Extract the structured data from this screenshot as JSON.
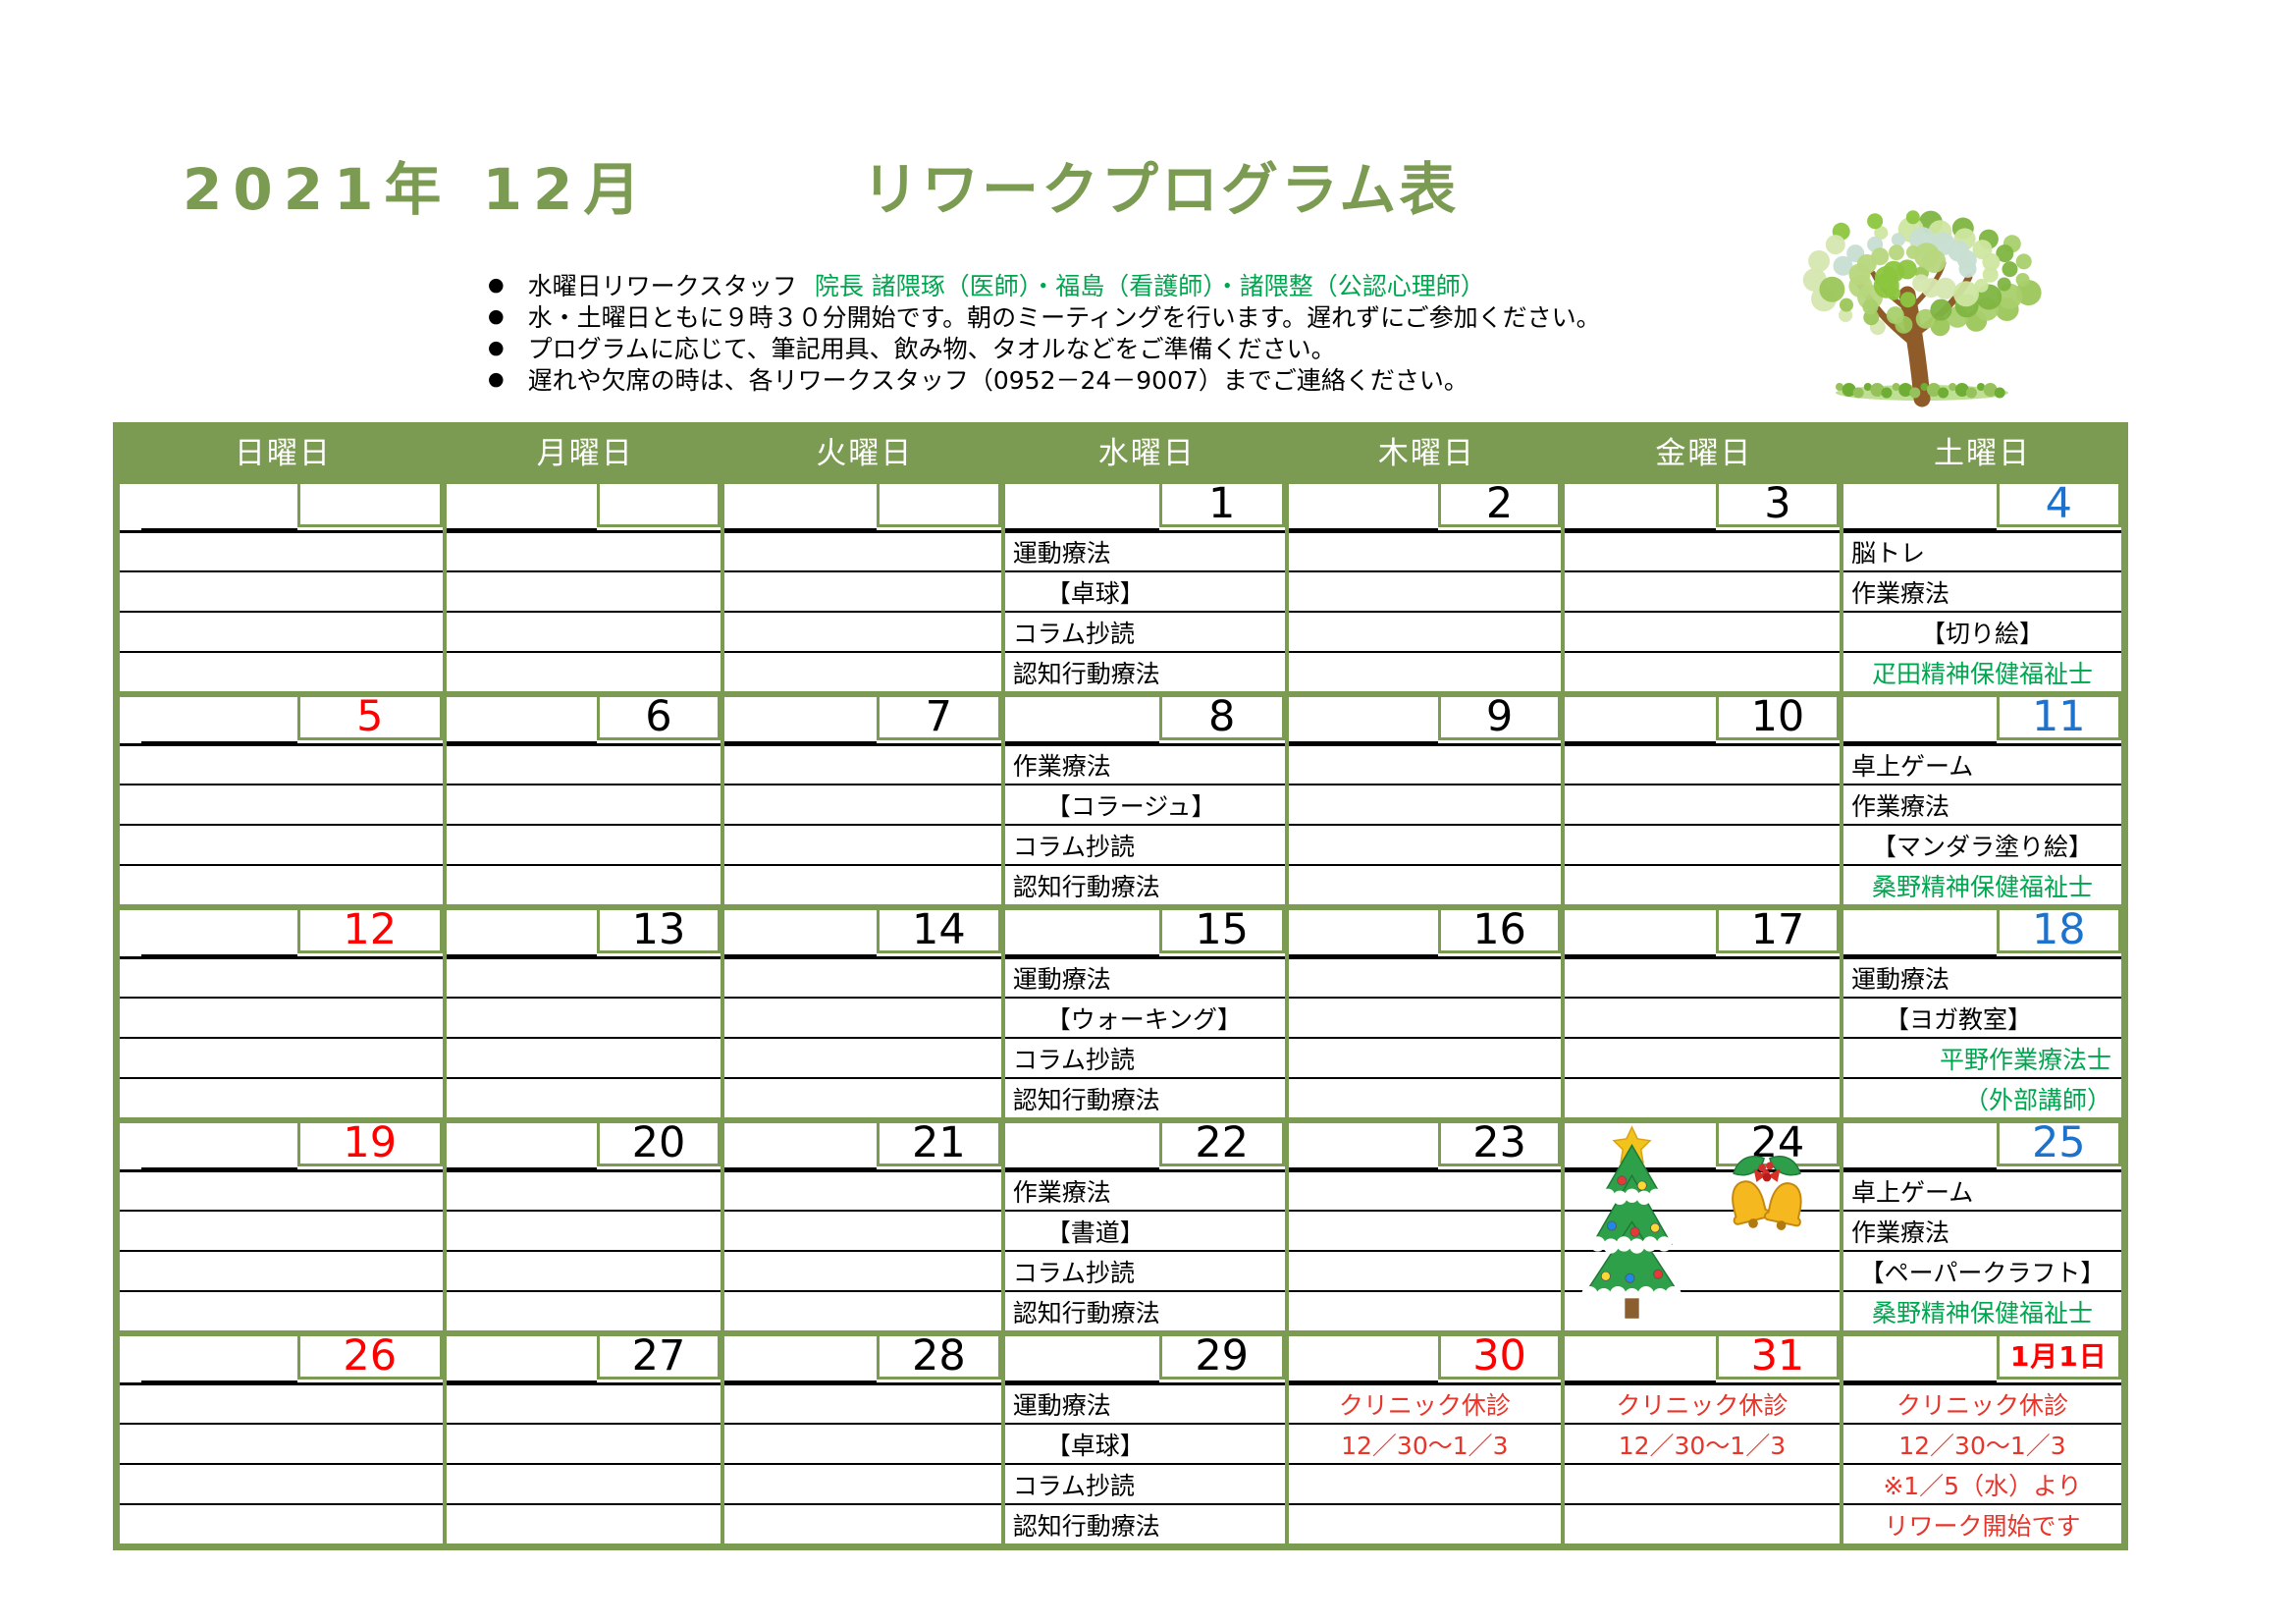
{
  "ui": {
    "bullet": "●"
  },
  "title": {
    "date": "2021年 12月",
    "name": "リワークプログラム表"
  },
  "notes": [
    {
      "text": "水曜日リワークスタッフ",
      "highlight": "院長 諸隈琢（医師）・福島（看護師）・諸隈整（公認心理師）"
    },
    {
      "text": "水・土曜日ともに９時３０分開始です。朝のミーティングを行います。遅れずにご参加ください。",
      "highlight": ""
    },
    {
      "text": "プログラムに応じて、筆記用具、飲み物、タオルなどをご準備ください。",
      "highlight": ""
    },
    {
      "text": "遅れや欠席の時は、各リワークスタッフ（0952－24－9007）までご連絡ください。",
      "highlight": ""
    }
  ],
  "colors": {
    "olive_green": "#7C9B52",
    "staff_green": "#00A64F",
    "closed_red": "#E8352B",
    "sunday_red": "#FF0000",
    "saturday_blue": "#1C72CC"
  },
  "calendar": {
    "weekdays": [
      "日曜日",
      "月曜日",
      "火曜日",
      "水曜日",
      "木曜日",
      "金曜日",
      "土曜日"
    ],
    "weeks": [
      {
        "christmas": false,
        "dates": [
          {
            "label": "",
            "color": "black"
          },
          {
            "label": "",
            "color": "black"
          },
          {
            "label": "",
            "color": "black"
          },
          {
            "label": "1",
            "color": "black"
          },
          {
            "label": "2",
            "color": "black"
          },
          {
            "label": "3",
            "color": "black"
          },
          {
            "label": "4",
            "color": "blue"
          }
        ],
        "cells": [
          null,
          null,
          null,
          [
            {
              "text": "運動療法",
              "align": "left",
              "color": "black"
            },
            {
              "text": "【卓球】",
              "align": "indent",
              "color": "black"
            },
            {
              "text": "コラム抄読",
              "align": "left",
              "color": "black"
            },
            {
              "text": "認知行動療法",
              "align": "left",
              "color": "black"
            }
          ],
          null,
          null,
          [
            {
              "text": "脳トレ",
              "align": "left",
              "color": "black"
            },
            {
              "text": "作業療法",
              "align": "left",
              "color": "black"
            },
            {
              "text": "【切り絵】",
              "align": "center",
              "color": "black"
            },
            {
              "text": "疋田精神保健福祉士",
              "align": "center",
              "color": "green"
            }
          ]
        ]
      },
      {
        "christmas": false,
        "dates": [
          {
            "label": "5",
            "color": "red"
          },
          {
            "label": "6",
            "color": "black"
          },
          {
            "label": "7",
            "color": "black"
          },
          {
            "label": "8",
            "color": "black"
          },
          {
            "label": "9",
            "color": "black"
          },
          {
            "label": "10",
            "color": "black"
          },
          {
            "label": "11",
            "color": "blue"
          }
        ],
        "cells": [
          null,
          null,
          null,
          [
            {
              "text": "作業療法",
              "align": "left",
              "color": "black"
            },
            {
              "text": "【コラージュ】",
              "align": "indent",
              "color": "black"
            },
            {
              "text": "コラム抄読",
              "align": "left",
              "color": "black"
            },
            {
              "text": "認知行動療法",
              "align": "left",
              "color": "black"
            }
          ],
          null,
          null,
          [
            {
              "text": "卓上ゲーム",
              "align": "left",
              "color": "black"
            },
            {
              "text": "作業療法",
              "align": "left",
              "color": "black"
            },
            {
              "text": "【マンダラ塗り絵】",
              "align": "center",
              "color": "black"
            },
            {
              "text": "桑野精神保健福祉士",
              "align": "center",
              "color": "green"
            }
          ]
        ]
      },
      {
        "christmas": false,
        "dates": [
          {
            "label": "12",
            "color": "red"
          },
          {
            "label": "13",
            "color": "black"
          },
          {
            "label": "14",
            "color": "black"
          },
          {
            "label": "15",
            "color": "black"
          },
          {
            "label": "16",
            "color": "black"
          },
          {
            "label": "17",
            "color": "black"
          },
          {
            "label": "18",
            "color": "blue"
          }
        ],
        "cells": [
          null,
          null,
          null,
          [
            {
              "text": "運動療法",
              "align": "left",
              "color": "black"
            },
            {
              "text": "【ウォーキング】",
              "align": "indent",
              "color": "black"
            },
            {
              "text": "コラム抄読",
              "align": "left",
              "color": "black"
            },
            {
              "text": "認知行動療法",
              "align": "left",
              "color": "black"
            }
          ],
          null,
          null,
          [
            {
              "text": "運動療法",
              "align": "left",
              "color": "black"
            },
            {
              "text": "【ヨガ教室】",
              "align": "indent",
              "color": "black"
            },
            {
              "text": "平野作業療法士",
              "align": "right",
              "color": "green"
            },
            {
              "text": "（外部講師）",
              "align": "right",
              "color": "green"
            }
          ]
        ]
      },
      {
        "christmas": true,
        "dates": [
          {
            "label": "19",
            "color": "red"
          },
          {
            "label": "20",
            "color": "black"
          },
          {
            "label": "21",
            "color": "black"
          },
          {
            "label": "22",
            "color": "black"
          },
          {
            "label": "23",
            "color": "black"
          },
          {
            "label": "24",
            "color": "black"
          },
          {
            "label": "25",
            "color": "blue"
          }
        ],
        "cells": [
          null,
          null,
          null,
          [
            {
              "text": "作業療法",
              "align": "left",
              "color": "black"
            },
            {
              "text": "【書道】",
              "align": "indent",
              "color": "black"
            },
            {
              "text": "コラム抄読",
              "align": "left",
              "color": "black"
            },
            {
              "text": "認知行動療法",
              "align": "left",
              "color": "black"
            }
          ],
          null,
          null,
          [
            {
              "text": "卓上ゲーム",
              "align": "left",
              "color": "black"
            },
            {
              "text": "作業療法",
              "align": "left",
              "color": "black"
            },
            {
              "text": "【ペーパークラフト】",
              "align": "center",
              "color": "black"
            },
            {
              "text": "桑野精神保健福祉士",
              "align": "center",
              "color": "green"
            }
          ]
        ]
      },
      {
        "christmas": false,
        "dates": [
          {
            "label": "26",
            "color": "red"
          },
          {
            "label": "27",
            "color": "black"
          },
          {
            "label": "28",
            "color": "black"
          },
          {
            "label": "29",
            "color": "black"
          },
          {
            "label": "30",
            "color": "red"
          },
          {
            "label": "31",
            "color": "red"
          },
          {
            "label": "1月1日",
            "color": "red",
            "small": true
          }
        ],
        "cells": [
          null,
          null,
          null,
          [
            {
              "text": "運動療法",
              "align": "left",
              "color": "black"
            },
            {
              "text": "【卓球】",
              "align": "indent",
              "color": "black"
            },
            {
              "text": "コラム抄読",
              "align": "left",
              "color": "black"
            },
            {
              "text": "認知行動療法",
              "align": "left",
              "color": "black"
            }
          ],
          [
            {
              "text": "クリニック休診",
              "align": "center",
              "color": "red"
            },
            {
              "text": "12／30～1／3",
              "align": "center",
              "color": "red"
            },
            null,
            null
          ],
          [
            {
              "text": "クリニック休診",
              "align": "center",
              "color": "red"
            },
            {
              "text": "12／30～1／3",
              "align": "center",
              "color": "red"
            },
            null,
            null
          ],
          [
            {
              "text": "クリニック休診",
              "align": "center",
              "color": "red"
            },
            {
              "text": "12／30～1／3",
              "align": "center",
              "color": "red"
            },
            {
              "text": "※1／5（水）より",
              "align": "center",
              "color": "red"
            },
            {
              "text": "リワーク開始です",
              "align": "center",
              "color": "red"
            }
          ]
        ]
      }
    ]
  }
}
